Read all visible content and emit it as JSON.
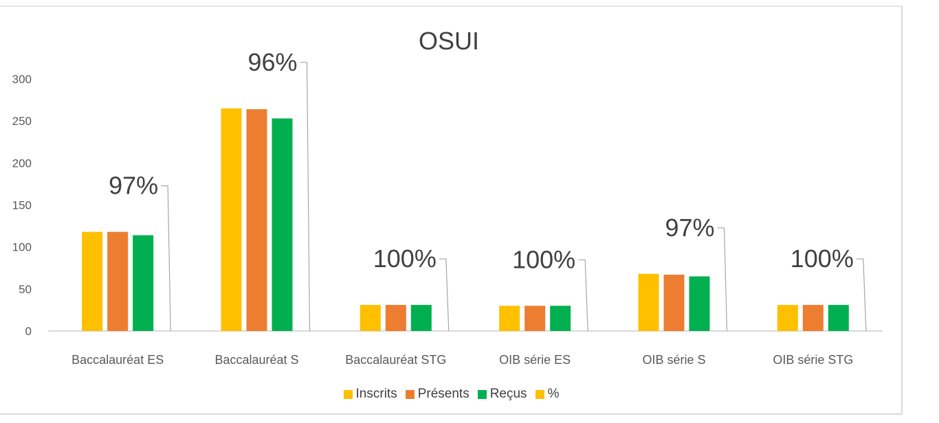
{
  "chart_data": {
    "type": "bar",
    "title": "OSUI",
    "xlabel": "",
    "ylabel": "",
    "categories": [
      "Baccalauréat ES",
      "Baccalauréat S",
      "Baccalauréat STG",
      "OIB série ES",
      "OIB série S",
      "OIB série STG"
    ],
    "series": [
      {
        "name": "Inscrits",
        "color": "#FFC000",
        "values": [
          118,
          265,
          31,
          30,
          68,
          31
        ]
      },
      {
        "name": "Présents",
        "color": "#ED7D31",
        "values": [
          118,
          264,
          31,
          30,
          67,
          31
        ]
      },
      {
        "name": "Reçus",
        "color": "#00B050",
        "values": [
          114,
          253,
          31,
          30,
          65,
          31
        ]
      }
    ],
    "percent_series": {
      "name": "%",
      "color": "#FFC000",
      "labels": [
        "97%",
        "96%",
        "100%",
        "100%",
        "97%",
        "100%"
      ]
    },
    "ylim": [
      0,
      300
    ],
    "yticks": [
      0,
      50,
      100,
      150,
      200,
      250,
      300
    ],
    "grid": false,
    "legend_position": "bottom"
  }
}
